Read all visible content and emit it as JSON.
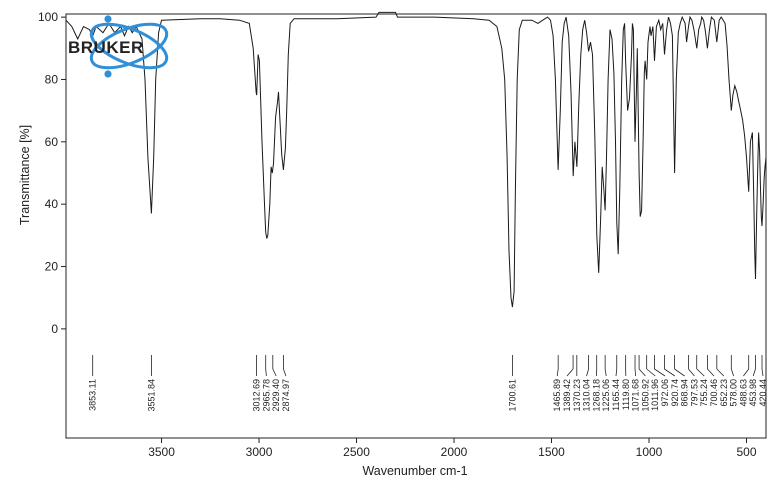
{
  "chart_data": {
    "type": "line",
    "xlabel": "Wavenumber cm-1",
    "ylabel": "Transmittance [%]",
    "xlim": [
      3990,
      400
    ],
    "ylim": [
      -35,
      101
    ],
    "x_ticks": [
      3500,
      3000,
      2500,
      2000,
      1500,
      1000,
      500
    ],
    "y_ticks": [
      0,
      20,
      40,
      60,
      80,
      100
    ],
    "grid": false,
    "logo": {
      "text": "BRUKER",
      "color": "#2f8fd8"
    },
    "series": [
      {
        "color": "#1a1a1a",
        "points": [
          [
            3990,
            99
          ],
          [
            3960,
            97
          ],
          [
            3930,
            93
          ],
          [
            3900,
            97
          ],
          [
            3870,
            96
          ],
          [
            3853,
            94
          ],
          [
            3835,
            97
          ],
          [
            3800,
            95
          ],
          [
            3770,
            98
          ],
          [
            3740,
            95
          ],
          [
            3710,
            97
          ],
          [
            3690,
            94
          ],
          [
            3670,
            97
          ],
          [
            3650,
            95
          ],
          [
            3630,
            97
          ],
          [
            3600,
            93
          ],
          [
            3585,
            80
          ],
          [
            3570,
            55
          ],
          [
            3552,
            37
          ],
          [
            3540,
            55
          ],
          [
            3530,
            80
          ],
          [
            3515,
            95
          ],
          [
            3500,
            99
          ],
          [
            3300,
            99.5
          ],
          [
            3200,
            99.5
          ],
          [
            3100,
            99
          ],
          [
            3050,
            98
          ],
          [
            3030,
            90
          ],
          [
            3015,
            76
          ],
          [
            3012,
            75
          ],
          [
            3005,
            88
          ],
          [
            2998,
            86
          ],
          [
            2985,
            60
          ],
          [
            2972,
            40
          ],
          [
            2966,
            31
          ],
          [
            2960,
            29
          ],
          [
            2955,
            30
          ],
          [
            2945,
            40
          ],
          [
            2938,
            52
          ],
          [
            2932,
            50
          ],
          [
            2926,
            53
          ],
          [
            2915,
            68
          ],
          [
            2905,
            73
          ],
          [
            2900,
            76
          ],
          [
            2892,
            66
          ],
          [
            2884,
            56
          ],
          [
            2875,
            51
          ],
          [
            2865,
            58
          ],
          [
            2858,
            70
          ],
          [
            2850,
            88
          ],
          [
            2840,
            98
          ],
          [
            2820,
            99.5
          ],
          [
            2600,
            99.5
          ],
          [
            2400,
            100
          ],
          [
            2385,
            103
          ],
          [
            2300,
            103
          ],
          [
            2290,
            100
          ],
          [
            2100,
            100
          ],
          [
            1900,
            99.5
          ],
          [
            1820,
            99
          ],
          [
            1780,
            97
          ],
          [
            1755,
            90
          ],
          [
            1740,
            80
          ],
          [
            1728,
            55
          ],
          [
            1718,
            25
          ],
          [
            1708,
            10
          ],
          [
            1700.6,
            7
          ],
          [
            1692,
            12
          ],
          [
            1685,
            45
          ],
          [
            1676,
            80
          ],
          [
            1665,
            96
          ],
          [
            1650,
            99
          ],
          [
            1600,
            99
          ],
          [
            1570,
            98
          ],
          [
            1545,
            99
          ],
          [
            1520,
            100
          ],
          [
            1505,
            99
          ],
          [
            1492,
            94
          ],
          [
            1480,
            80
          ],
          [
            1466,
            51
          ],
          [
            1455,
            70
          ],
          [
            1445,
            92
          ],
          [
            1435,
            98
          ],
          [
            1425,
            100
          ],
          [
            1412,
            94
          ],
          [
            1400,
            76
          ],
          [
            1389,
            49
          ],
          [
            1380,
            60
          ],
          [
            1370,
            52
          ],
          [
            1360,
            72
          ],
          [
            1350,
            88
          ],
          [
            1340,
            96
          ],
          [
            1330,
            99
          ],
          [
            1320,
            95
          ],
          [
            1310,
            89
          ],
          [
            1300,
            92
          ],
          [
            1290,
            88
          ],
          [
            1278,
            62
          ],
          [
            1268,
            30
          ],
          [
            1258,
            18
          ],
          [
            1248,
            36
          ],
          [
            1240,
            52
          ],
          [
            1232,
            45
          ],
          [
            1225,
            38
          ],
          [
            1218,
            55
          ],
          [
            1210,
            80
          ],
          [
            1200,
            96
          ],
          [
            1190,
            93
          ],
          [
            1180,
            82
          ],
          [
            1172,
            60
          ],
          [
            1165,
            34
          ],
          [
            1158,
            24
          ],
          [
            1150,
            45
          ],
          [
            1140,
            80
          ],
          [
            1132,
            96
          ],
          [
            1125,
            98
          ],
          [
            1119.8,
            86
          ],
          [
            1110,
            70
          ],
          [
            1100,
            74
          ],
          [
            1090,
            88
          ],
          [
            1085,
            98
          ],
          [
            1080,
            96
          ],
          [
            1071.7,
            60
          ],
          [
            1065,
            75
          ],
          [
            1060,
            90
          ],
          [
            1050.9,
            50
          ],
          [
            1045,
            36
          ],
          [
            1038,
            38
          ],
          [
            1030,
            62
          ],
          [
            1024,
            82
          ],
          [
            1020,
            86
          ],
          [
            1011.9,
            80
          ],
          [
            1005,
            92
          ],
          [
            995,
            97
          ],
          [
            990,
            94
          ],
          [
            980,
            97
          ],
          [
            972,
            86
          ],
          [
            962,
            97
          ],
          [
            950,
            99
          ],
          [
            940,
            96
          ],
          [
            930,
            98
          ],
          [
            920.7,
            88
          ],
          [
            910,
            96
          ],
          [
            900,
            100
          ],
          [
            890,
            98
          ],
          [
            880,
            94
          ],
          [
            869,
            50
          ],
          [
            860,
            80
          ],
          [
            850,
            95
          ],
          [
            840,
            98
          ],
          [
            830,
            100
          ],
          [
            815,
            98
          ],
          [
            807,
            92
          ],
          [
            797.5,
            97
          ],
          [
            790,
            100
          ],
          [
            780,
            99
          ],
          [
            770,
            96
          ],
          [
            755,
            90
          ],
          [
            745,
            96
          ],
          [
            735,
            98
          ],
          [
            730,
            100
          ],
          [
            720,
            99
          ],
          [
            710,
            95
          ],
          [
            700.5,
            90
          ],
          [
            690,
            96
          ],
          [
            680,
            100
          ],
          [
            665,
            99
          ],
          [
            652.2,
            92
          ],
          [
            640,
            99
          ],
          [
            630,
            100
          ],
          [
            610,
            98
          ],
          [
            600,
            91
          ],
          [
            590,
            80
          ],
          [
            578,
            70
          ],
          [
            570,
            75
          ],
          [
            560,
            78
          ],
          [
            550,
            76
          ],
          [
            540,
            73
          ],
          [
            530,
            70
          ],
          [
            520,
            67
          ],
          [
            510,
            62
          ],
          [
            500,
            55
          ],
          [
            495,
            50
          ],
          [
            488.6,
            44
          ],
          [
            480,
            60
          ],
          [
            470,
            63
          ],
          [
            462,
            40
          ],
          [
            458,
            25
          ],
          [
            454,
            16
          ],
          [
            448,
            35
          ],
          [
            443,
            50
          ],
          [
            438,
            63
          ],
          [
            433,
            57
          ],
          [
            428,
            45
          ],
          [
            424,
            36
          ],
          [
            420.4,
            33
          ],
          [
            415,
            40
          ],
          [
            410,
            48
          ],
          [
            405,
            52
          ],
          [
            400,
            55
          ]
        ]
      }
    ],
    "peaks": [
      {
        "x": 3853.11,
        "label": "3853.11"
      },
      {
        "x": 3551.84,
        "label": "3551.84"
      },
      {
        "x": 3012.69,
        "label": "3012.69"
      },
      {
        "x": 2965.78,
        "label": "2965.78"
      },
      {
        "x": 2929.4,
        "label": "2929.40"
      },
      {
        "x": 2874.97,
        "label": "2874.97"
      },
      {
        "x": 1700.61,
        "label": "1700.61"
      },
      {
        "x": 1465.89,
        "label": "1465.89"
      },
      {
        "x": 1389.42,
        "label": "1389.42"
      },
      {
        "x": 1370.23,
        "label": "1370.23"
      },
      {
        "x": 1310.04,
        "label": "1310.04"
      },
      {
        "x": 1268.18,
        "label": "1268.18"
      },
      {
        "x": 1225.06,
        "label": "1225.06"
      },
      {
        "x": 1165.44,
        "label": "1165.44"
      },
      {
        "x": 1119.8,
        "label": "1119.80"
      },
      {
        "x": 1071.68,
        "label": "1071.68"
      },
      {
        "x": 1050.92,
        "label": "1050.92"
      },
      {
        "x": 1011.96,
        "label": "1011.96"
      },
      {
        "x": 972.06,
        "label": "972.06"
      },
      {
        "x": 920.74,
        "label": "920.74"
      },
      {
        "x": 868.94,
        "label": "868.94"
      },
      {
        "x": 797.53,
        "label": "797.53"
      },
      {
        "x": 755.24,
        "label": "755.24"
      },
      {
        "x": 700.46,
        "label": "700.46"
      },
      {
        "x": 652.23,
        "label": "652.23"
      },
      {
        "x": 578.0,
        "label": "578.00"
      },
      {
        "x": 488.63,
        "label": "488.63"
      },
      {
        "x": 453.98,
        "label": "453.98"
      },
      {
        "x": 420.44,
        "label": "420.44"
      }
    ]
  }
}
